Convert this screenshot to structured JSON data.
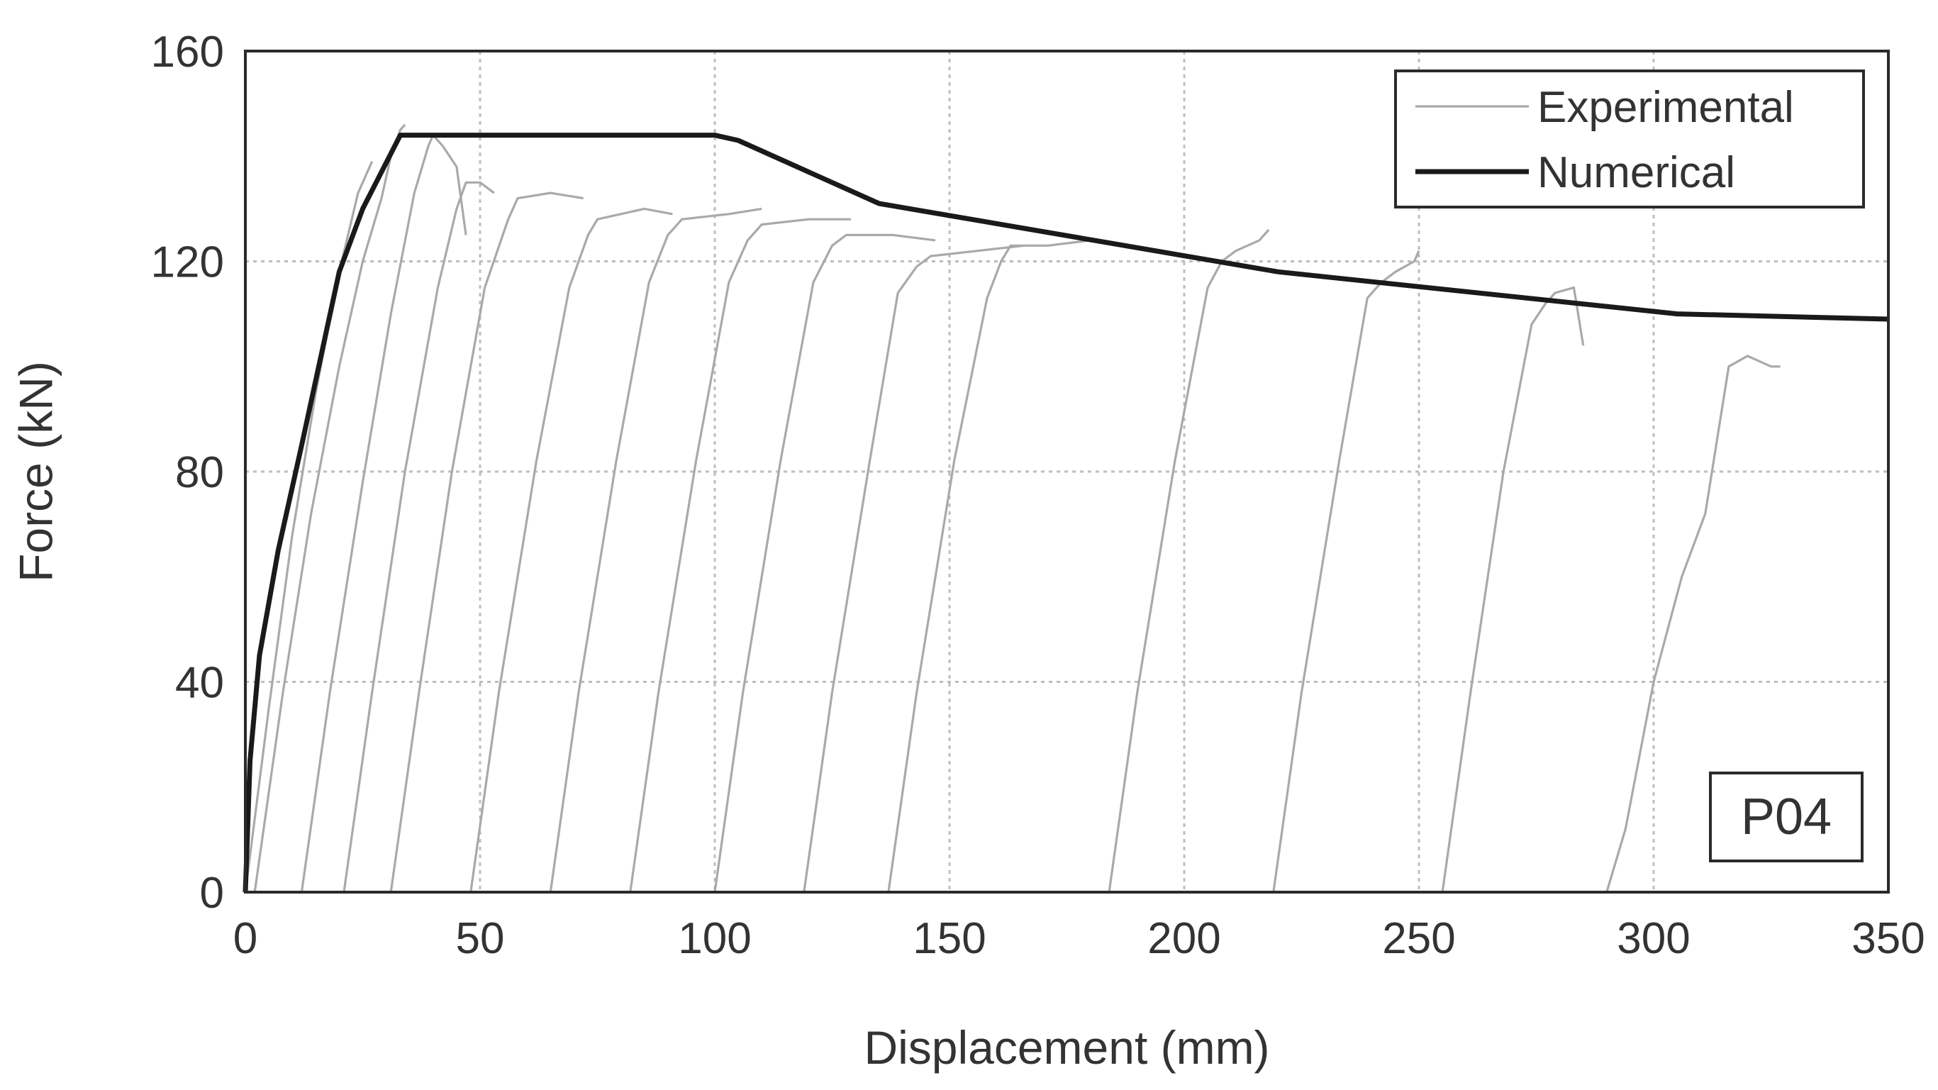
{
  "chart_data": {
    "type": "line",
    "xlabel": "Displacement (mm)",
    "ylabel": "Force (kN)",
    "xlim": [
      0,
      350
    ],
    "ylim": [
      0,
      160
    ],
    "xticks": [
      0,
      50,
      100,
      150,
      200,
      250,
      300,
      350
    ],
    "yticks": [
      0,
      40,
      80,
      120,
      160
    ],
    "grid": true,
    "legend_position": "top-right",
    "annotation": "P04",
    "series": [
      {
        "name": "Experimental",
        "color": "#a9a9a9",
        "cycles": [
          {
            "x": [
              0,
              5,
              10,
              15,
              20,
              24,
              27
            ],
            "y": [
              0,
              35,
              68,
              95,
              118,
              133,
              139
            ]
          },
          {
            "x": [
              2,
              8,
              14,
              20,
              25,
              29,
              31,
              33,
              34
            ],
            "y": [
              0,
              38,
              72,
              100,
              120,
              132,
              140,
              145,
              146
            ]
          },
          {
            "x": [
              12,
              18,
              25,
              31,
              36,
              39,
              40,
              42,
              45,
              47
            ],
            "y": [
              0,
              38,
              78,
              110,
              133,
              142,
              144,
              142,
              138,
              125
            ]
          },
          {
            "x": [
              21,
              27,
              34,
              41,
              45,
              47,
              50,
              53
            ],
            "y": [
              0,
              38,
              80,
              115,
              130,
              135,
              135,
              133
            ]
          },
          {
            "x": [
              31,
              37,
              44,
              51,
              56,
              58,
              65,
              72
            ],
            "y": [
              0,
              38,
              80,
              115,
              128,
              132,
              133,
              132
            ]
          },
          {
            "x": [
              48,
              54,
              62,
              69,
              73,
              75,
              85,
              91
            ],
            "y": [
              0,
              38,
              82,
              115,
              125,
              128,
              130,
              129
            ]
          },
          {
            "x": [
              65,
              71,
              79,
              86,
              90,
              93,
              103,
              110
            ],
            "y": [
              0,
              38,
              82,
              116,
              125,
              128,
              129,
              130
            ]
          },
          {
            "x": [
              82,
              88,
              96,
              103,
              107,
              110,
              120,
              129
            ],
            "y": [
              0,
              38,
              82,
              116,
              124,
              127,
              128,
              128
            ]
          },
          {
            "x": [
              100,
              106,
              114,
              121,
              125,
              128,
              138,
              147
            ],
            "y": [
              0,
              38,
              82,
              116,
              123,
              125,
              125,
              124
            ]
          },
          {
            "x": [
              119,
              125,
              133,
              139,
              143,
              146,
              156,
              166
            ],
            "y": [
              0,
              38,
              82,
              114,
              119,
              121,
              122,
              123
            ]
          },
          {
            "x": [
              137,
              143,
              151,
              158,
              161,
              163,
              171,
              180
            ],
            "y": [
              0,
              38,
              82,
              113,
              120,
              123,
              123,
              124
            ]
          },
          {
            "x": [
              184,
              190,
              198,
              205,
              208,
              211,
              216,
              218
            ],
            "y": [
              0,
              38,
              82,
              115,
              120,
              122,
              124,
              126
            ]
          },
          {
            "x": [
              219,
              225,
              233,
              239,
              242,
              245,
              249,
              250
            ],
            "y": [
              0,
              38,
              82,
              113,
              116,
              118,
              120,
              122
            ]
          },
          {
            "x": [
              255,
              261,
              268,
              274,
              277,
              279,
              283,
              285
            ],
            "y": [
              0,
              38,
              80,
              108,
              112,
              114,
              115,
              104
            ]
          },
          {
            "x": [
              290,
              294,
              300,
              306,
              311,
              316,
              320,
              325,
              327
            ],
            "y": [
              0,
              12,
              40,
              60,
              72,
              100,
              102,
              100,
              100
            ]
          }
        ]
      },
      {
        "name": "Numerical",
        "color": "#1a1a1a",
        "x": [
          0,
          1,
          3,
          7,
          12,
          20,
          25,
          33,
          100,
          105,
          135,
          220,
          305,
          350
        ],
        "y": [
          0,
          25,
          45,
          65,
          85,
          118,
          130,
          144,
          144,
          143,
          131,
          118,
          110,
          109
        ]
      }
    ]
  }
}
